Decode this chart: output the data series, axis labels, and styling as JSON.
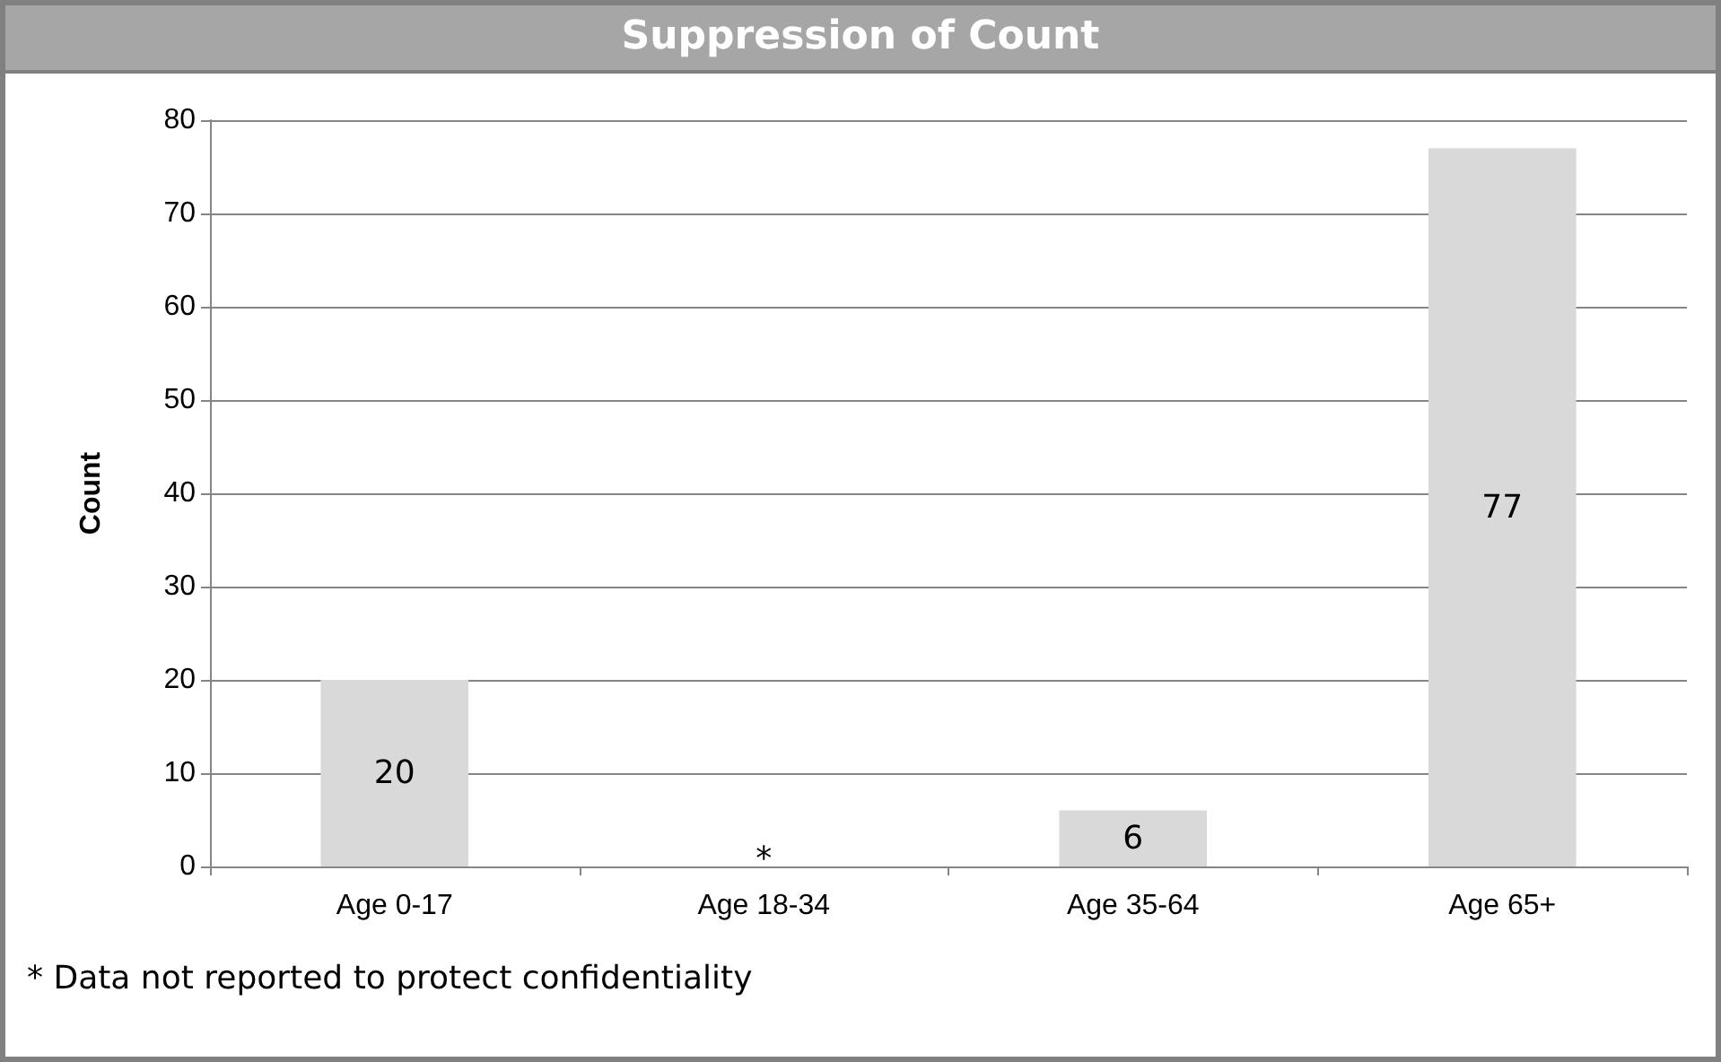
{
  "chart_data": {
    "type": "bar",
    "title": "Suppression of Count",
    "ylabel": "Count",
    "categories": [
      "Age 0-17",
      "Age 18-34",
      "Age 35-64",
      "Age 65+"
    ],
    "values": [
      20,
      null,
      6,
      77
    ],
    "value_labels": [
      "20",
      "*",
      "6",
      "77"
    ],
    "color": "#d9d9d9",
    "ylim": [
      0,
      80
    ],
    "yticks": [
      0,
      10,
      20,
      30,
      40,
      50,
      60,
      70,
      80
    ],
    "grid": "y",
    "annotations": [
      "* Data not reported to protect confidentiality"
    ]
  }
}
